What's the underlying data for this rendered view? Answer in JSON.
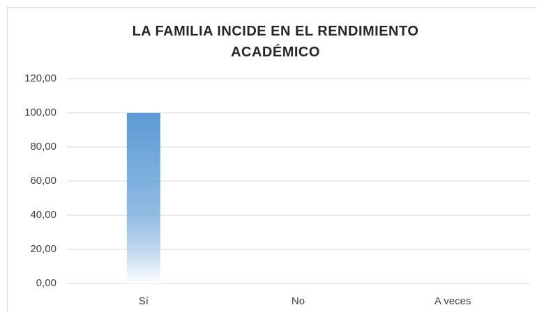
{
  "chart_data": {
    "type": "bar",
    "title": "LA FAMILIA INCIDE EN EL RENDIMIENTO ACADÉMICO",
    "categories": [
      "Sí",
      "No",
      "A veces"
    ],
    "values": [
      100,
      0,
      0
    ],
    "color": "#5b9bd5",
    "ylim": [
      0,
      120
    ],
    "yticks": [
      {
        "value": 0,
        "label": "0,00"
      },
      {
        "value": 20,
        "label": "20,00"
      },
      {
        "value": 40,
        "label": "40,00"
      },
      {
        "value": 60,
        "label": "60,00"
      },
      {
        "value": 80,
        "label": "80,00"
      },
      {
        "value": 100,
        "label": "100,00"
      },
      {
        "value": 120,
        "label": "120,00"
      }
    ],
    "grid": true
  }
}
